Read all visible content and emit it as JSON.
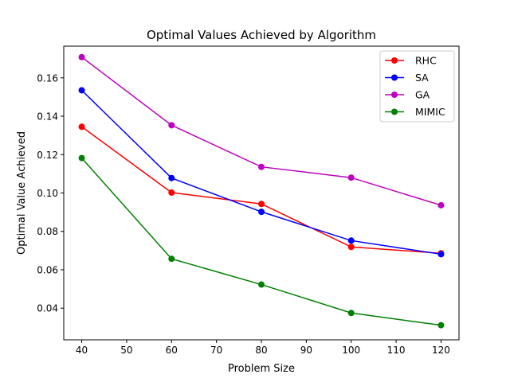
{
  "chart_data": {
    "type": "line",
    "title": "Optimal Values Achieved by Algorithm",
    "xlabel": "Problem Size",
    "ylabel": "Optimal Value Achieved",
    "x": [
      40,
      60,
      80,
      100,
      120
    ],
    "xlim": [
      36,
      124
    ],
    "ylim": [
      0.0235,
      0.1765
    ],
    "xticks": [
      40,
      50,
      60,
      70,
      80,
      90,
      100,
      110,
      120
    ],
    "yticks": [
      0.04,
      0.06,
      0.08,
      0.1,
      0.12,
      0.14,
      0.16
    ],
    "ytick_labels": [
      "0.04",
      "0.06",
      "0.08",
      "0.10",
      "0.12",
      "0.14",
      "0.16"
    ],
    "grid": false,
    "legend_position": "top-right",
    "series": [
      {
        "name": "RHC",
        "color": "#ff0000",
        "values": [
          0.1345,
          0.1002,
          0.0943,
          0.0719,
          0.0686
        ]
      },
      {
        "name": "SA",
        "color": "#0000ff",
        "values": [
          0.1535,
          0.1078,
          0.0902,
          0.0752,
          0.0681
        ]
      },
      {
        "name": "GA",
        "color": "#bf00bf",
        "values": [
          0.1708,
          0.1353,
          0.1136,
          0.108,
          0.0936
        ]
      },
      {
        "name": "MIMIC",
        "color": "#008000",
        "values": [
          0.1182,
          0.0657,
          0.0523,
          0.0375,
          0.0311
        ]
      }
    ]
  }
}
